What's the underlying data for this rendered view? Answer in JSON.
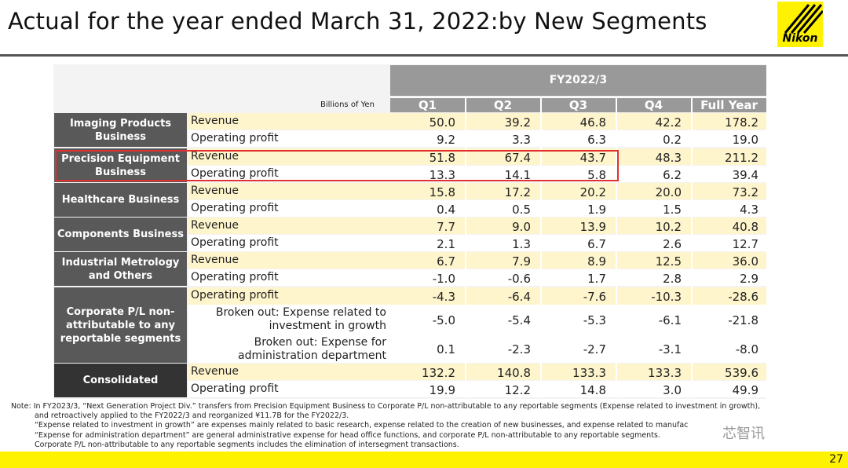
{
  "title": "Actual for the year ended March 31, 2022:by New Segments",
  "logo": "Nikon",
  "unit": "Billions of Yen",
  "period": "FY2022/3",
  "columns": [
    "Q1",
    "Q2",
    "Q3",
    "Q4",
    "Full Year"
  ],
  "colors": {
    "header": "#999999",
    "segment": "#595959",
    "consolidated": "#333333",
    "row_yellow": "#fff5cc",
    "row_white": "#ffffff",
    "highlight": "#e03030",
    "brand": "#fff200"
  },
  "segments": [
    {
      "name": "Imaging Products Business",
      "rows": [
        {
          "label": "Revenue",
          "values": [
            "50.0",
            "39.2",
            "46.8",
            "42.2",
            "178.2"
          ]
        },
        {
          "label": "Operating profit",
          "values": [
            "9.2",
            "3.3",
            "6.3",
            "0.2",
            "19.0"
          ]
        }
      ]
    },
    {
      "name": "Precision Equipment Business",
      "rows": [
        {
          "label": "Revenue",
          "values": [
            "51.8",
            "67.4",
            "43.7",
            "48.3",
            "211.2"
          ]
        },
        {
          "label": "Operating profit",
          "values": [
            "13.3",
            "14.1",
            "5.8",
            "6.2",
            "39.4"
          ]
        }
      ]
    },
    {
      "name": "Healthcare Business",
      "rows": [
        {
          "label": "Revenue",
          "values": [
            "15.8",
            "17.2",
            "20.2",
            "20.0",
            "73.2"
          ]
        },
        {
          "label": "Operating profit",
          "values": [
            "0.4",
            "0.5",
            "1.9",
            "1.5",
            "4.3"
          ]
        }
      ]
    },
    {
      "name": "Components Business",
      "rows": [
        {
          "label": "Revenue",
          "values": [
            "7.7",
            "9.0",
            "13.9",
            "10.2",
            "40.8"
          ]
        },
        {
          "label": "Operating profit",
          "values": [
            "2.1",
            "1.3",
            "6.7",
            "2.6",
            "12.7"
          ]
        }
      ]
    },
    {
      "name": "Industrial Metrology and Others",
      "rows": [
        {
          "label": "Revenue",
          "values": [
            "6.7",
            "7.9",
            "8.9",
            "12.5",
            "36.0"
          ]
        },
        {
          "label": "Operating profit",
          "values": [
            "-1.0",
            "-0.6",
            "1.7",
            "2.8",
            "2.9"
          ]
        }
      ]
    },
    {
      "name": "Corporate P/L non-attributable to any reportable segments",
      "rows": [
        {
          "label": "Operating profit",
          "values": [
            "-4.3",
            "-6.4",
            "-7.6",
            "-10.3",
            "-28.6"
          ]
        },
        {
          "label": "Broken out: Expense related to investment in growth",
          "values": [
            "-5.0",
            "-5.4",
            "-5.3",
            "-6.1",
            "-21.8"
          ]
        },
        {
          "label": "Broken out: Expense for administration department",
          "values": [
            "0.1",
            "-2.3",
            "-2.7",
            "-3.1",
            "-8.0"
          ]
        }
      ]
    },
    {
      "name": "Consolidated",
      "rows": [
        {
          "label": "Revenue",
          "values": [
            "132.2",
            "140.8",
            "133.3",
            "133.3",
            "539.6"
          ]
        },
        {
          "label": "Operating profit",
          "values": [
            "19.9",
            "12.2",
            "14.8",
            "3.0",
            "49.9"
          ]
        }
      ]
    }
  ],
  "notes": [
    "Note: In FY2023/3, “Next Generation Project Div.” transfers from Precision Equipment Business to Corporate P/L non-attributable to any reportable segments (Expense related to investment in growth),",
    "and retroactively applied to the FY2022/3 and reorganized ¥11.7B for the FY2022/3.",
    "“Expense related to investment in growth” are expenses mainly related to basic research, expense related to the creation of new businesses, and expense related to manufac",
    "“Expense for administration department” are general administrative expense for head office functions, and corporate P/L non-attributable to any reportable segments.",
    "Corporate P/L non-attributable to any reportable segments includes the elimination of intersegment transactions."
  ],
  "watermark": "芯智讯",
  "page_number": "27"
}
